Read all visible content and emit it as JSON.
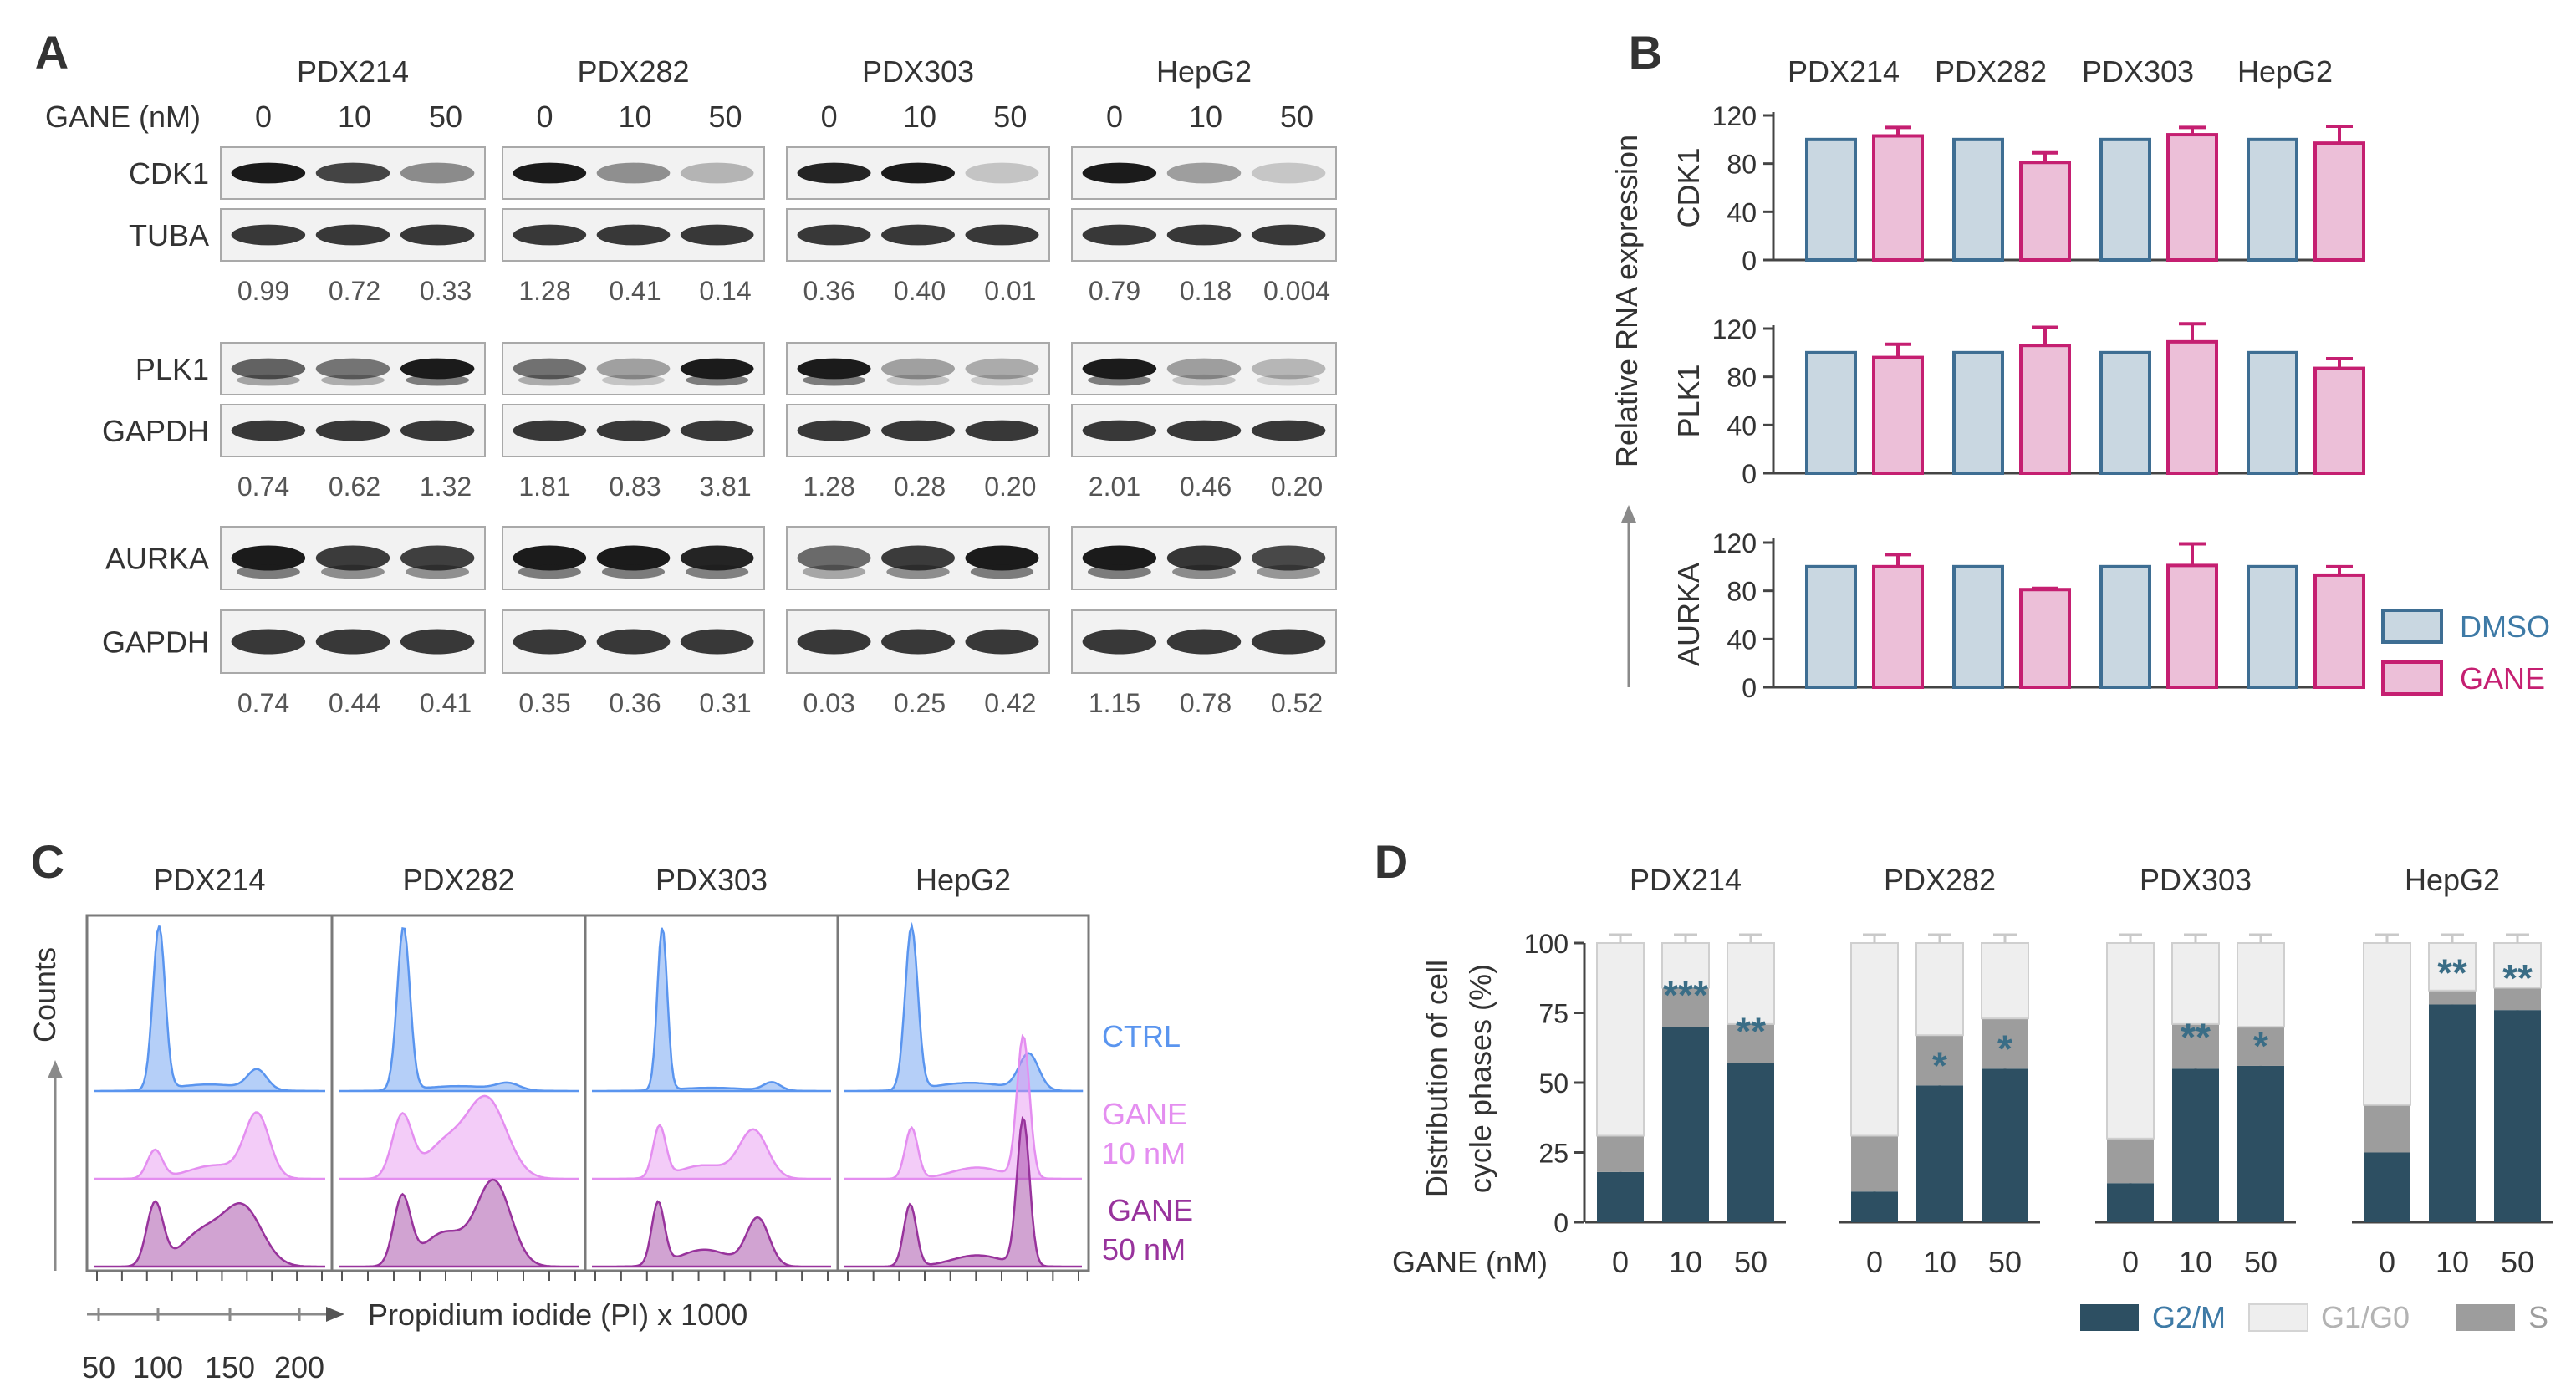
{
  "panels": {
    "A": "A",
    "B": "B",
    "C": "C",
    "D": "D"
  },
  "colors": {
    "text": "#333333",
    "dmso_fill": "#c9d7e1",
    "dmso_edge": "#3e6e93",
    "gane_fill": "#ecbfd8",
    "gane_edge": "#c51f71",
    "dmso_label": "#3e7aa6",
    "gane_label": "#c51f71",
    "ctrl": "#5a95ef",
    "gane10": "#e48ef0",
    "gane50": "#98339c",
    "g2m": "#2d4f62",
    "g1g0": "#eeeeee",
    "s": "#9d9d9d",
    "star": "#3a6d86",
    "gray_text": "#8a8a8a"
  },
  "panelA": {
    "cells": [
      "PDX214",
      "PDX282",
      "PDX303",
      "HepG2"
    ],
    "dose_label": "GANE (nM)",
    "doses": [
      "0",
      "10",
      "50"
    ],
    "groups": [
      {
        "top": "CDK1",
        "bottom": "TUBA",
        "values": [
          [
            "0.99",
            "0.72",
            "0.33"
          ],
          [
            "1.28",
            "0.41",
            "0.14"
          ],
          [
            "0.36",
            "0.40",
            "0.01"
          ],
          [
            "0.79",
            "0.18",
            "0.004"
          ]
        ]
      },
      {
        "top": "PLK1",
        "bottom": "GAPDH",
        "values": [
          [
            "0.74",
            "0.62",
            "1.32"
          ],
          [
            "1.81",
            "0.83",
            "3.81"
          ],
          [
            "1.28",
            "0.28",
            "0.20"
          ],
          [
            "2.01",
            "0.46",
            "0.20"
          ]
        ]
      },
      {
        "top": "AURKA",
        "bottom": "GAPDH",
        "values": [
          [
            "0.74",
            "0.44",
            "0.41"
          ],
          [
            "0.35",
            "0.36",
            "0.31"
          ],
          [
            "0.03",
            "0.25",
            "0.42"
          ],
          [
            "1.15",
            "0.78",
            "0.52"
          ]
        ]
      }
    ]
  },
  "chart_data": [
    {
      "panel": "B",
      "type": "bar",
      "title": "",
      "categories": [
        "PDX214",
        "PDX282",
        "PDX303",
        "HepG2"
      ],
      "ylabel": "Relative RNA expression",
      "ylim": [
        0,
        120
      ],
      "yticks": [
        "0",
        "40",
        "80",
        "120"
      ],
      "legend": [
        "DMSO",
        "GANE"
      ],
      "legend_position": "bottom-right",
      "subplots": [
        {
          "gene": "CDK1",
          "series": [
            {
              "name": "DMSO",
              "values": [
                100,
                100,
                100,
                100
              ]
            },
            {
              "name": "GANE",
              "values": [
                103,
                81,
                104,
                97
              ],
              "errors": [
                7,
                8,
                6,
                14
              ]
            }
          ]
        },
        {
          "gene": "PLK1",
          "series": [
            {
              "name": "DMSO",
              "values": [
                100,
                100,
                100,
                100
              ]
            },
            {
              "name": "GANE",
              "values": [
                96,
                106,
                109,
                87
              ],
              "errors": [
                11,
                15,
                15,
                8
              ]
            }
          ]
        },
        {
          "gene": "AURKA",
          "series": [
            {
              "name": "DMSO",
              "values": [
                100,
                100,
                100,
                100
              ]
            },
            {
              "name": "GANE",
              "values": [
                100,
                81,
                101,
                93
              ],
              "errors": [
                10,
                1,
                18,
                7
              ]
            }
          ]
        }
      ]
    },
    {
      "panel": "C",
      "type": "area",
      "title": "",
      "categories": [
        "PDX214",
        "PDX282",
        "PDX303",
        "HepG2"
      ],
      "xlabel": "Propidium iodide (PI) x 1000",
      "ylabel": "Counts",
      "xlim": [
        40,
        210
      ],
      "xticks": [
        "50",
        "100",
        "150",
        "200"
      ],
      "series": [
        {
          "name": "CTRL",
          "label": "CTRL",
          "peaks": [
            [
              [
                88,
                1.0,
                4.5
              ],
              [
                160,
                0.12,
                7
              ],
              [
                125,
                0.04,
                25
              ]
            ],
            [
              [
                86,
                1.0,
                4.5
              ],
              [
                160,
                0.04,
                8
              ],
              [
                125,
                0.03,
                25
              ]
            ],
            [
              [
                90,
                1.0,
                3.5
              ],
              [
                168,
                0.05,
                6
              ],
              [
                125,
                0.02,
                25
              ]
            ],
            [
              [
                88,
                1.0,
                4.5
              ],
              [
                172,
                0.22,
                7
              ],
              [
                130,
                0.05,
                25
              ]
            ]
          ]
        },
        {
          "name": "GANE 10 nM",
          "label": [
            "GANE",
            "10 nM"
          ],
          "peaks": [
            [
              [
                85,
                0.25,
                5.5
              ],
              [
                160,
                0.55,
                9
              ],
              [
                130,
                0.12,
                20
              ]
            ],
            [
              [
                85,
                0.55,
                7
              ],
              [
                145,
                0.7,
                14
              ],
              [
                115,
                0.3,
                14
              ]
            ],
            [
              [
                88,
                0.45,
                4.5
              ],
              [
                155,
                0.42,
                10
              ],
              [
                120,
                0.12,
                18
              ]
            ],
            [
              [
                88,
                0.45,
                4.5
              ],
              [
                168,
                1.25,
                4.5
              ],
              [
                135,
                0.1,
                18
              ]
            ]
          ]
        },
        {
          "name": "GANE 50 nM",
          "label": [
            "GANE",
            "50 nM"
          ],
          "peaks": [
            [
              [
                85,
                0.55,
                6
              ],
              [
                150,
                0.5,
                14
              ],
              [
                120,
                0.3,
                16
              ]
            ],
            [
              [
                85,
                0.6,
                6
              ],
              [
                150,
                0.75,
                12
              ],
              [
                115,
                0.3,
                15
              ]
            ],
            [
              [
                87,
                0.55,
                4.5
              ],
              [
                158,
                0.42,
                8
              ],
              [
                120,
                0.15,
                18
              ]
            ],
            [
              [
                87,
                0.55,
                4.5
              ],
              [
                168,
                1.3,
                4.5
              ],
              [
                135,
                0.1,
                18
              ]
            ]
          ]
        }
      ]
    },
    {
      "panel": "D",
      "type": "bar",
      "title": "",
      "categories": [
        "PDX214",
        "PDX282",
        "PDX303",
        "HepG2"
      ],
      "ylabel": "Distribution of cell cycle phases (%)",
      "xlabel": "GANE (nM)",
      "doses": [
        "0",
        "10",
        "50"
      ],
      "ylim": [
        0,
        100
      ],
      "yticks": [
        "0",
        "25",
        "50",
        "75",
        "100"
      ],
      "legend": [
        "G2/M",
        "G1/G0",
        "S"
      ],
      "legend_position": "bottom-right",
      "series": [
        {
          "name": "G2/M",
          "values": [
            [
              18,
              70,
              57
            ],
            [
              11,
              49,
              55
            ],
            [
              14,
              55,
              56
            ],
            [
              25,
              78,
              76
            ]
          ]
        },
        {
          "name": "S",
          "values": [
            [
              13,
              14,
              14
            ],
            [
              20,
              18,
              18
            ],
            [
              16,
              16,
              14
            ],
            [
              17,
              5,
              8
            ]
          ]
        },
        {
          "name": "G1/G0",
          "values": [
            [
              69,
              16,
              29
            ],
            [
              69,
              33,
              27
            ],
            [
              70,
              29,
              30
            ],
            [
              58,
              17,
              16
            ]
          ]
        }
      ],
      "significance": [
        [
          "",
          "***",
          "**"
        ],
        [
          "",
          "*",
          "*"
        ],
        [
          "",
          "**",
          "*"
        ],
        [
          "",
          "**",
          "**"
        ]
      ]
    }
  ]
}
